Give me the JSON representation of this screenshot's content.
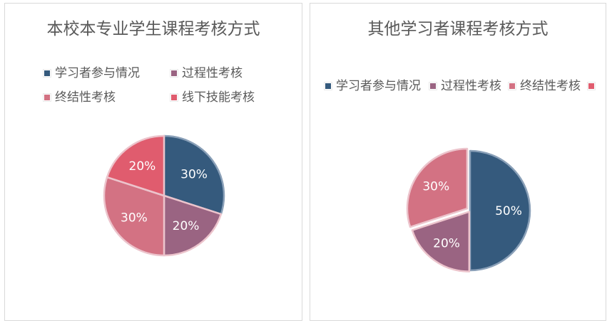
{
  "colors": {
    "series1": "#355a7d",
    "series2": "#9a6482",
    "series3": "#d37283",
    "series4": "#e05c6e",
    "slice_border_dark": "#8aa0b8",
    "slice_border_light": "#ecc4cc"
  },
  "chart_data": [
    {
      "type": "pie",
      "title": "本校本专业学生课程考核方式",
      "legend_position": "top",
      "categories": [
        "学习者参与情况",
        "过程性考核",
        "终结性考核",
        "线下技能考核"
      ],
      "values": [
        30,
        20,
        30,
        20
      ],
      "data_labels": [
        "30%",
        "20%",
        "30%",
        "20%"
      ]
    },
    {
      "type": "pie",
      "title": "其他学习者课程考核方式",
      "legend_position": "top",
      "categories": [
        "学习者参与情况",
        "过程性考核",
        "终结性考核"
      ],
      "values": [
        50,
        20,
        30
      ],
      "data_labels": [
        "50%",
        "20%",
        "30%"
      ],
      "legend_swatch_colors": [
        "#355a7d",
        "#9a6482",
        "#d37283",
        "#e05c6e"
      ]
    }
  ]
}
